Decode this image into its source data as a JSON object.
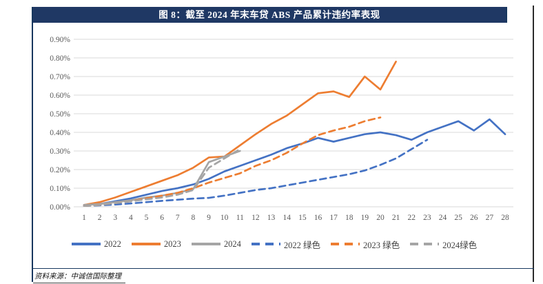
{
  "figure": {
    "title": "图 8：截至 2024 年末车贷 ABS 产品累计违约率表现",
    "source_note": "资料来源：中诚信国际整理"
  },
  "colors": {
    "navy_bar": "#1F3864",
    "blue": "#4472C4",
    "orange": "#ED7D31",
    "gray": "#A5A5A5",
    "gridline": "#D9D9D9",
    "tick_text": "#595959"
  },
  "chart_data": {
    "type": "line",
    "title": "截至2024年末车贷ABS产品累计违约率表现",
    "xlabel": "",
    "ylabel": "",
    "x": [
      1,
      2,
      3,
      4,
      5,
      6,
      7,
      8,
      9,
      10,
      11,
      12,
      13,
      14,
      15,
      16,
      17,
      18,
      19,
      20,
      21,
      22,
      23,
      24,
      25,
      26,
      27,
      28
    ],
    "y_ticks": [
      "0.90%",
      "0.80%",
      "0.70%",
      "0.60%",
      "0.50%",
      "0.40%",
      "0.30%",
      "0.20%",
      "0.10%",
      "0.00%"
    ],
    "ylim": [
      0,
      0.9
    ],
    "y_unit": "%",
    "grid": "horizontal",
    "legend_position": "bottom",
    "series": [
      {
        "name": "2022",
        "color": "#4472C4",
        "dash": false,
        "values": [
          0.01,
          0.015,
          0.03,
          0.045,
          0.065,
          0.085,
          0.1,
          0.12,
          0.15,
          0.19,
          0.22,
          0.25,
          0.28,
          0.315,
          0.34,
          0.37,
          0.35,
          0.37,
          0.39,
          0.4,
          0.385,
          0.36,
          0.4,
          0.43,
          0.46,
          0.41,
          0.47,
          0.39
        ]
      },
      {
        "name": "2023",
        "color": "#ED7D31",
        "dash": false,
        "values": [
          0.01,
          0.025,
          0.05,
          0.08,
          0.11,
          0.14,
          0.17,
          0.21,
          0.265,
          0.27,
          0.33,
          0.39,
          0.445,
          0.49,
          0.55,
          0.61,
          0.62,
          0.59,
          0.7,
          0.63,
          0.78
        ]
      },
      {
        "name": "2024",
        "color": "#A5A5A5",
        "dash": false,
        "values": [
          0.01,
          0.015,
          0.025,
          0.035,
          0.05,
          0.06,
          0.075,
          0.095,
          0.24,
          0.27,
          0.3
        ]
      },
      {
        "name": "2022 绿色",
        "color": "#4472C4",
        "dash": true,
        "values": [
          0.005,
          0.008,
          0.012,
          0.018,
          0.025,
          0.032,
          0.038,
          0.044,
          0.048,
          0.06,
          0.075,
          0.09,
          0.1,
          0.115,
          0.13,
          0.145,
          0.16,
          0.175,
          0.195,
          0.225,
          0.26,
          0.31,
          0.36
        ]
      },
      {
        "name": "2023 绿色",
        "color": "#ED7D31",
        "dash": true,
        "values": [
          0.005,
          0.01,
          0.02,
          0.03,
          0.045,
          0.06,
          0.075,
          0.1,
          0.13,
          0.155,
          0.18,
          0.22,
          0.25,
          0.29,
          0.34,
          0.385,
          0.41,
          0.43,
          0.46,
          0.48
        ]
      },
      {
        "name": "2024绿色",
        "color": "#A5A5A5",
        "dash": true,
        "values": [
          0.005,
          0.01,
          0.02,
          0.03,
          0.04,
          0.05,
          0.065,
          0.09,
          0.21,
          0.26,
          0.31
        ]
      }
    ]
  }
}
